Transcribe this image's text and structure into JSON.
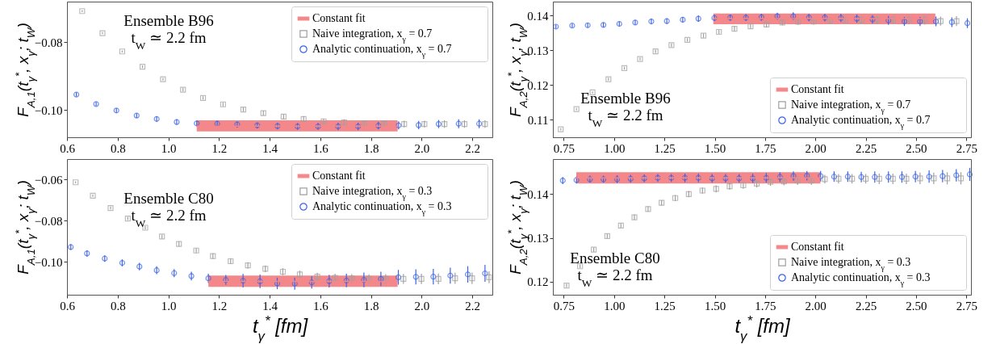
{
  "chart_data": [
    {
      "type": "scatter",
      "ylabel": "F$_{A,1}$(t$_{γ}$$^{*}$, x$_{γ}$; t$_{W}$)",
      "annotations": [
        "Ensemble B96",
        "t$_{W}$ ≃ 2.2 fm"
      ],
      "legend": "top right",
      "xlim": [
        0.6,
        2.279
      ],
      "xticks": [
        0.6,
        0.8,
        {
          "value": 1.0,
          "label": "1.0"
        },
        1.2,
        1.4,
        1.6,
        1.8,
        {
          "value": 2.0,
          "label": "2.0"
        },
        2.2
      ],
      "ylim": [
        -0.108,
        -0.068
      ],
      "yticks": [
        {
          "value": -0.1,
          "label": "−0.10"
        },
        {
          "value": -0.08,
          "label": "−0.08"
        }
      ],
      "series": [
        {
          "type": "line",
          "name": "Constant fit",
          "color": "#f4878a",
          "x": [
            1.112,
            1.905
          ],
          "values": [
            -0.1047,
            -0.1047
          ],
          "lower": [
            -0.1063,
            -0.1063
          ],
          "upper": [
            -0.103,
            -0.103
          ]
        },
        {
          "name": "Naive integration, x$_{γ}$ = 0.7",
          "color": "#a0a0a0",
          "marker": "square",
          "x": [
            0.66,
            0.74,
            0.818,
            0.898,
            0.979,
            1.058,
            1.137,
            1.216,
            1.296,
            1.375,
            1.455,
            1.534,
            1.613,
            1.694,
            1.773,
            1.852,
            1.931,
            2.011,
            2.09,
            2.169,
            2.25
          ],
          "values": [
            -0.0708,
            -0.0773,
            -0.0827,
            -0.0872,
            -0.0909,
            -0.094,
            -0.0964,
            -0.0983,
            -0.0998,
            -0.1009,
            -0.1019,
            -0.1026,
            -0.1033,
            -0.1036,
            -0.1039,
            -0.104,
            -0.1041,
            -0.1041,
            -0.1041,
            -0.1041,
            -0.1041
          ],
          "errors": [
            0.0003,
            0.0003,
            0.0003,
            0.0004,
            0.0004,
            0.0005,
            0.0005,
            0.0006,
            0.0006,
            0.0007,
            0.0007,
            0.0008,
            0.0008,
            0.0009,
            0.0009,
            0.001,
            0.001,
            0.001,
            0.0011,
            0.0011,
            0.0011
          ]
        },
        {
          "name": "Analytic continuation, x$_{γ}$ = 0.7",
          "color": "#3c64e6",
          "marker": "circle",
          "x": [
            0.637,
            0.715,
            0.795,
            0.875,
            0.954,
            1.033,
            1.112,
            1.193,
            1.272,
            1.351,
            1.431,
            1.51,
            1.591,
            1.67,
            1.749,
            1.829,
            1.909,
            1.988,
            2.067,
            2.146,
            2.227
          ],
          "values": [
            -0.0954,
            -0.0982,
            -0.1001,
            -0.1016,
            -0.1026,
            -0.1035,
            -0.1039,
            -0.104,
            -0.1042,
            -0.1045,
            -0.1047,
            -0.1048,
            -0.1048,
            -0.1048,
            -0.1048,
            -0.1046,
            -0.1045,
            -0.1044,
            -0.1041,
            -0.104,
            -0.104
          ],
          "errors": [
            0.0006,
            0.0006,
            0.0007,
            0.0007,
            0.0008,
            0.0008,
            0.0008,
            0.0009,
            0.0009,
            0.0009,
            0.001,
            0.001,
            0.001,
            0.0011,
            0.0011,
            0.0011,
            0.0012,
            0.0012,
            0.0012,
            0.0013,
            0.0013
          ]
        }
      ]
    },
    {
      "type": "scatter",
      "ylabel": "F$_{A,2}$(t$_{γ}$$^{*}$, x$_{γ}$; t$_{W}$)",
      "annotations": [
        "Ensemble B96",
        "t$_{W}$ ≃ 2.2 fm"
      ],
      "legend": "bottom right",
      "xlim": [
        0.696,
        2.773
      ],
      "xticks": [
        0.75,
        {
          "value": 1.0,
          "label": "1.00"
        },
        1.25,
        {
          "value": 1.5,
          "label": "1.50"
        },
        1.75,
        {
          "value": 2.0,
          "label": "2.00"
        },
        2.25,
        {
          "value": 2.5,
          "label": "2.50"
        },
        2.75
      ],
      "ylim": [
        0.105,
        0.144
      ],
      "yticks": [
        0.11,
        0.12,
        0.13,
        0.14
      ],
      "series": [
        {
          "type": "line",
          "name": "Constant fit",
          "color": "#f4878a",
          "x": [
            1.493,
            2.596
          ],
          "values": [
            0.1391,
            0.1391
          ],
          "lower": [
            0.1375,
            0.1375
          ],
          "upper": [
            0.1406,
            0.1406
          ]
        },
        {
          "name": "Naive integration, x$_{γ}$ = 0.7",
          "color": "#a0a0a0",
          "marker": "square",
          "x": [
            0.735,
            0.813,
            0.893,
            0.972,
            1.051,
            1.129,
            1.206,
            1.285,
            1.364,
            1.444,
            1.521,
            1.598,
            1.678,
            1.757,
            1.836,
            1.914,
            1.991,
            2.072,
            2.149,
            2.229,
            2.307,
            2.386,
            2.465,
            2.543,
            2.622,
            2.701
          ],
          "values": [
            0.1073,
            0.1131,
            0.1179,
            0.1217,
            0.1249,
            0.1275,
            0.1297,
            0.1315,
            0.133,
            0.1342,
            0.1353,
            0.1362,
            0.1369,
            0.1374,
            0.138,
            0.1382,
            0.1383,
            0.1385,
            0.1386,
            0.1387,
            0.1387,
            0.1387,
            0.1387,
            0.1387,
            0.1384,
            0.1384
          ],
          "errors": [
            0.0003,
            0.0003,
            0.0003,
            0.0004,
            0.0004,
            0.0004,
            0.0005,
            0.0005,
            0.0005,
            0.0006,
            0.0006,
            0.0007,
            0.0007,
            0.0008,
            0.0008,
            0.0009,
            0.0009,
            0.001,
            0.001,
            0.0011,
            0.0011,
            0.0012,
            0.0012,
            0.0013,
            0.0013,
            0.0014
          ]
        },
        {
          "name": "Analytic continuation, x$_{γ}$ = 0.7",
          "color": "#3c64e6",
          "marker": "circle",
          "x": [
            0.711,
            0.792,
            0.869,
            0.947,
            1.026,
            1.105,
            1.185,
            1.262,
            1.341,
            1.419,
            1.498,
            1.577,
            1.655,
            1.732,
            1.811,
            1.89,
            1.968,
            2.047,
            2.127,
            2.206,
            2.284,
            2.363,
            2.442,
            2.52,
            2.599,
            2.678,
            2.755
          ],
          "values": [
            0.1368,
            0.1371,
            0.1372,
            0.1373,
            0.1376,
            0.138,
            0.1383,
            0.1384,
            0.1388,
            0.1391,
            0.1393,
            0.1394,
            0.1394,
            0.1395,
            0.1398,
            0.1398,
            0.1394,
            0.1394,
            0.1393,
            0.1391,
            0.1389,
            0.1386,
            0.1383,
            0.1383,
            0.1383,
            0.1381,
            0.1378
          ],
          "errors": [
            0.0006,
            0.0006,
            0.0006,
            0.0007,
            0.0007,
            0.0007,
            0.0008,
            0.0008,
            0.0008,
            0.0009,
            0.0009,
            0.0009,
            0.001,
            0.001,
            0.001,
            0.0011,
            0.0011,
            0.0011,
            0.0012,
            0.0012,
            0.0012,
            0.0013,
            0.0013,
            0.0013,
            0.0014,
            0.0014,
            0.0014
          ]
        }
      ]
    },
    {
      "type": "scatter",
      "xlabel": "t$_{γ}$$^{*}$ [fm]",
      "ylabel": "F$_{A,1}$(t$_{γ}$$^{*}$, x$_{γ}$; t$_{W}$)",
      "annotations": [
        "Ensemble C80",
        "t$_{W}$ ≃ 2.2 fm"
      ],
      "legend": "top right",
      "xlim": [
        0.6,
        2.279
      ],
      "xticks": [
        0.6,
        0.8,
        {
          "value": 1.0,
          "label": "1.0"
        },
        1.2,
        1.4,
        1.6,
        1.8,
        {
          "value": 2.0,
          "label": "2.0"
        },
        2.2
      ],
      "ylim": [
        -0.116,
        -0.05
      ],
      "yticks": [
        {
          "value": -0.1,
          "label": "−0.10"
        },
        {
          "value": -0.08,
          "label": "−0.08"
        },
        {
          "value": -0.06,
          "label": "−0.06"
        }
      ],
      "series": [
        {
          "type": "line",
          "name": "Constant fit",
          "color": "#f4878a",
          "x": [
            1.158,
            1.905
          ],
          "values": [
            -0.1095,
            -0.1095
          ],
          "lower": [
            -0.1122,
            -0.1122
          ],
          "upper": [
            -0.1067,
            -0.1067
          ]
        },
        {
          "name": "Naive integration, x$_{γ}$ = 0.3",
          "color": "#a0a0a0",
          "marker": "square",
          "x": [
            0.634,
            0.702,
            0.772,
            0.84,
            0.909,
            0.975,
            1.042,
            1.11,
            1.176,
            1.246,
            1.314,
            1.383,
            1.452,
            1.519,
            1.588,
            1.658,
            1.724,
            1.792,
            1.858,
            1.928,
            1.999,
            2.066,
            2.132,
            2.199,
            2.266
          ],
          "values": [
            -0.0613,
            -0.0678,
            -0.0738,
            -0.0789,
            -0.0834,
            -0.0877,
            -0.0913,
            -0.0945,
            -0.0972,
            -0.0997,
            -0.1017,
            -0.1034,
            -0.1048,
            -0.1061,
            -0.1072,
            -0.1078,
            -0.1081,
            -0.1083,
            -0.1083,
            -0.1083,
            -0.1083,
            -0.1083,
            -0.108,
            -0.108,
            -0.1075
          ],
          "errors": [
            0.0005,
            0.0006,
            0.0007,
            0.0008,
            0.0009,
            0.001,
            0.0011,
            0.0012,
            0.0013,
            0.0014,
            0.0015,
            0.0016,
            0.0017,
            0.0018,
            0.0019,
            0.002,
            0.0021,
            0.0022,
            0.0023,
            0.0024,
            0.0025,
            0.0026,
            0.0027,
            0.0028,
            0.0029
          ]
        },
        {
          "name": "Analytic continuation, x$_{γ}$ = 0.3",
          "color": "#3c64e6",
          "marker": "circle",
          "x": [
            0.615,
            0.679,
            0.749,
            0.818,
            0.886,
            0.954,
            1.023,
            1.091,
            1.158,
            1.227,
            1.295,
            1.362,
            1.43,
            1.499,
            1.566,
            1.635,
            1.703,
            1.772,
            1.839,
            1.908,
            1.977,
            2.046,
            2.113,
            2.182,
            2.25
          ],
          "values": [
            -0.0928,
            -0.0959,
            -0.0984,
            -0.1005,
            -0.1023,
            -0.1041,
            -0.1055,
            -0.1069,
            -0.108,
            -0.1088,
            -0.1092,
            -0.1095,
            -0.1105,
            -0.1106,
            -0.11,
            -0.1094,
            -0.1091,
            -0.1088,
            -0.1083,
            -0.1075,
            -0.1073,
            -0.1072,
            -0.1067,
            -0.1061,
            -0.1056
          ],
          "errors": [
            0.0014,
            0.0015,
            0.0016,
            0.0017,
            0.0018,
            0.0019,
            0.002,
            0.0021,
            0.0022,
            0.0024,
            0.0033,
            0.0033,
            0.0028,
            0.0029,
            0.003,
            0.0031,
            0.0033,
            0.0036,
            0.0035,
            0.0036,
            0.0037,
            0.0038,
            0.0039,
            0.004,
            0.0041
          ]
        }
      ]
    },
    {
      "type": "scatter",
      "xlabel": "t$_{γ}$$^{*}$ [fm]",
      "ylabel": "F$_{A,2}$(t$_{γ}$$^{*}$, x$_{γ}$; t$_{W}$)",
      "annotations": [
        "Ensemble C80",
        "t$_{W}$ ≃ 2.2 fm"
      ],
      "legend": "bottom right",
      "xlim": [
        0.696,
        2.773
      ],
      "xticks": [
        0.75,
        {
          "value": 1.0,
          "label": "1.00"
        },
        1.25,
        {
          "value": 1.5,
          "label": "1.50"
        },
        1.75,
        {
          "value": 2.0,
          "label": "2.00"
        },
        2.25,
        {
          "value": 2.5,
          "label": "2.50"
        },
        2.75
      ],
      "ylim": [
        0.117,
        0.148
      ],
      "yticks": [
        0.12,
        0.13,
        0.14
      ],
      "series": [
        {
          "type": "line",
          "name": "Constant fit",
          "color": "#f4878a",
          "x": [
            0.812,
            2.025
          ],
          "values": [
            0.1437,
            0.1437
          ],
          "lower": [
            0.1424,
            0.1424
          ],
          "upper": [
            0.145,
            0.145
          ]
        },
        {
          "name": "Naive integration, x$_{γ}$ = 0.3",
          "color": "#a0a0a0",
          "marker": "square",
          "x": [
            0.764,
            0.831,
            0.899,
            0.966,
            1.034,
            1.101,
            1.169,
            1.236,
            1.304,
            1.371,
            1.439,
            1.507,
            1.574,
            1.642,
            1.709,
            1.777,
            1.844,
            1.912,
            1.98,
            2.047,
            2.115,
            2.182,
            2.25,
            2.317,
            2.385,
            2.452,
            2.52,
            2.588,
            2.655,
            2.723
          ],
          "values": [
            0.1191,
            0.1235,
            0.1273,
            0.1304,
            0.1328,
            0.1347,
            0.1366,
            0.138,
            0.1391,
            0.14,
            0.1408,
            0.1412,
            0.1418,
            0.142,
            0.1424,
            0.1428,
            0.1429,
            0.1431,
            0.1431,
            0.1434,
            0.1435,
            0.1435,
            0.1435,
            0.1435,
            0.1435,
            0.1435,
            0.1436,
            0.1436,
            0.1436,
            0.1436
          ],
          "errors": [
            0.0004,
            0.0004,
            0.0005,
            0.0005,
            0.0005,
            0.0006,
            0.0006,
            0.0006,
            0.0007,
            0.0007,
            0.0007,
            0.0008,
            0.0008,
            0.0008,
            0.0009,
            0.0009,
            0.0009,
            0.001,
            0.001,
            0.001,
            0.0011,
            0.0011,
            0.0011,
            0.0012,
            0.0012,
            0.0012,
            0.0013,
            0.0013,
            0.0014,
            0.0014
          ]
        },
        {
          "name": "Analytic continuation, x$_{γ}$ = 0.3",
          "color": "#3c64e6",
          "marker": "circle",
          "x": [
            0.745,
            0.813,
            0.88,
            0.947,
            1.015,
            1.082,
            1.15,
            1.217,
            1.284,
            1.352,
            1.419,
            1.487,
            1.554,
            1.621,
            1.689,
            1.756,
            1.824,
            1.891,
            1.958,
            2.026,
            2.093,
            2.161,
            2.228,
            2.295,
            2.363,
            2.43,
            2.497,
            2.565,
            2.632,
            2.7,
            2.767
          ],
          "values": [
            0.1431,
            0.1432,
            0.1434,
            0.1434,
            0.1434,
            0.1435,
            0.1436,
            0.1437,
            0.1437,
            0.1437,
            0.1437,
            0.1436,
            0.1436,
            0.1436,
            0.1436,
            0.1437,
            0.1439,
            0.1441,
            0.1442,
            0.1441,
            0.144,
            0.144,
            0.1439,
            0.1439,
            0.1439,
            0.1439,
            0.144,
            0.144,
            0.1441,
            0.1443,
            0.1445
          ],
          "errors": [
            0.0008,
            0.0008,
            0.0008,
            0.0008,
            0.0009,
            0.0009,
            0.0009,
            0.0009,
            0.0009,
            0.001,
            0.001,
            0.001,
            0.001,
            0.001,
            0.0011,
            0.0011,
            0.0011,
            0.0011,
            0.0011,
            0.0012,
            0.0012,
            0.0012,
            0.0012,
            0.0013,
            0.0013,
            0.0013,
            0.0013,
            0.0014,
            0.0014,
            0.0014,
            0.0015
          ]
        }
      ]
    }
  ]
}
